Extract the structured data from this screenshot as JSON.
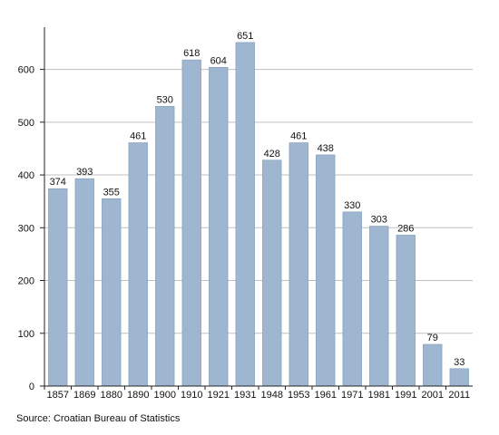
{
  "chart_data": {
    "type": "bar",
    "categories": [
      "1857",
      "1869",
      "1880",
      "1890",
      "1900",
      "1910",
      "1921",
      "1931",
      "1948",
      "1953",
      "1961",
      "1971",
      "1981",
      "1991",
      "2001",
      "2011"
    ],
    "values": [
      374,
      393,
      355,
      461,
      530,
      618,
      604,
      651,
      428,
      461,
      438,
      330,
      303,
      286,
      79,
      33
    ],
    "yticks": [
      0,
      100,
      200,
      300,
      400,
      500,
      600
    ],
    "ylim": [
      0,
      680
    ],
    "grid": true,
    "colors": {
      "bar_fill": "#9eb6cf",
      "bar_stroke": "#7f9ab6",
      "grid": "#bfbfbf",
      "axis": "#222222"
    }
  },
  "source": "Source: Croatian Bureau of Statistics"
}
